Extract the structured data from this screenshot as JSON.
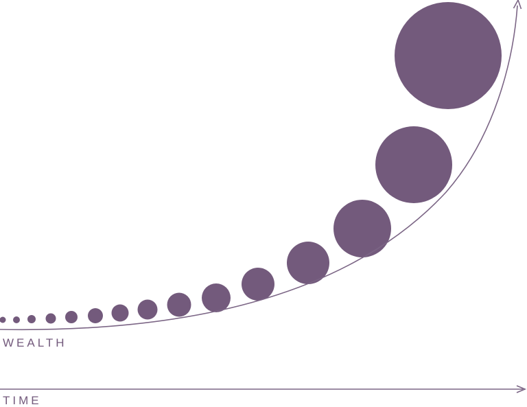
{
  "labels": {
    "wealth": "WEALTH",
    "time": "TIME"
  },
  "colors": {
    "dot": "#735a7c",
    "line": "#7b6585",
    "text": "#735a7c"
  },
  "dots": [
    {
      "index": 1
    },
    {
      "index": 2
    },
    {
      "index": 3
    },
    {
      "index": 4
    },
    {
      "index": 5
    },
    {
      "index": 6
    },
    {
      "index": 7
    },
    {
      "index": 8
    },
    {
      "index": 9
    },
    {
      "index": 10
    },
    {
      "index": 11
    },
    {
      "index": 12
    },
    {
      "index": 13
    },
    {
      "index": 14
    },
    {
      "index": 15
    },
    {
      "index": 16
    }
  ],
  "icons": {
    "curve_arrowhead": "arrowhead-icon",
    "time_arrowhead": "arrowhead-icon"
  }
}
